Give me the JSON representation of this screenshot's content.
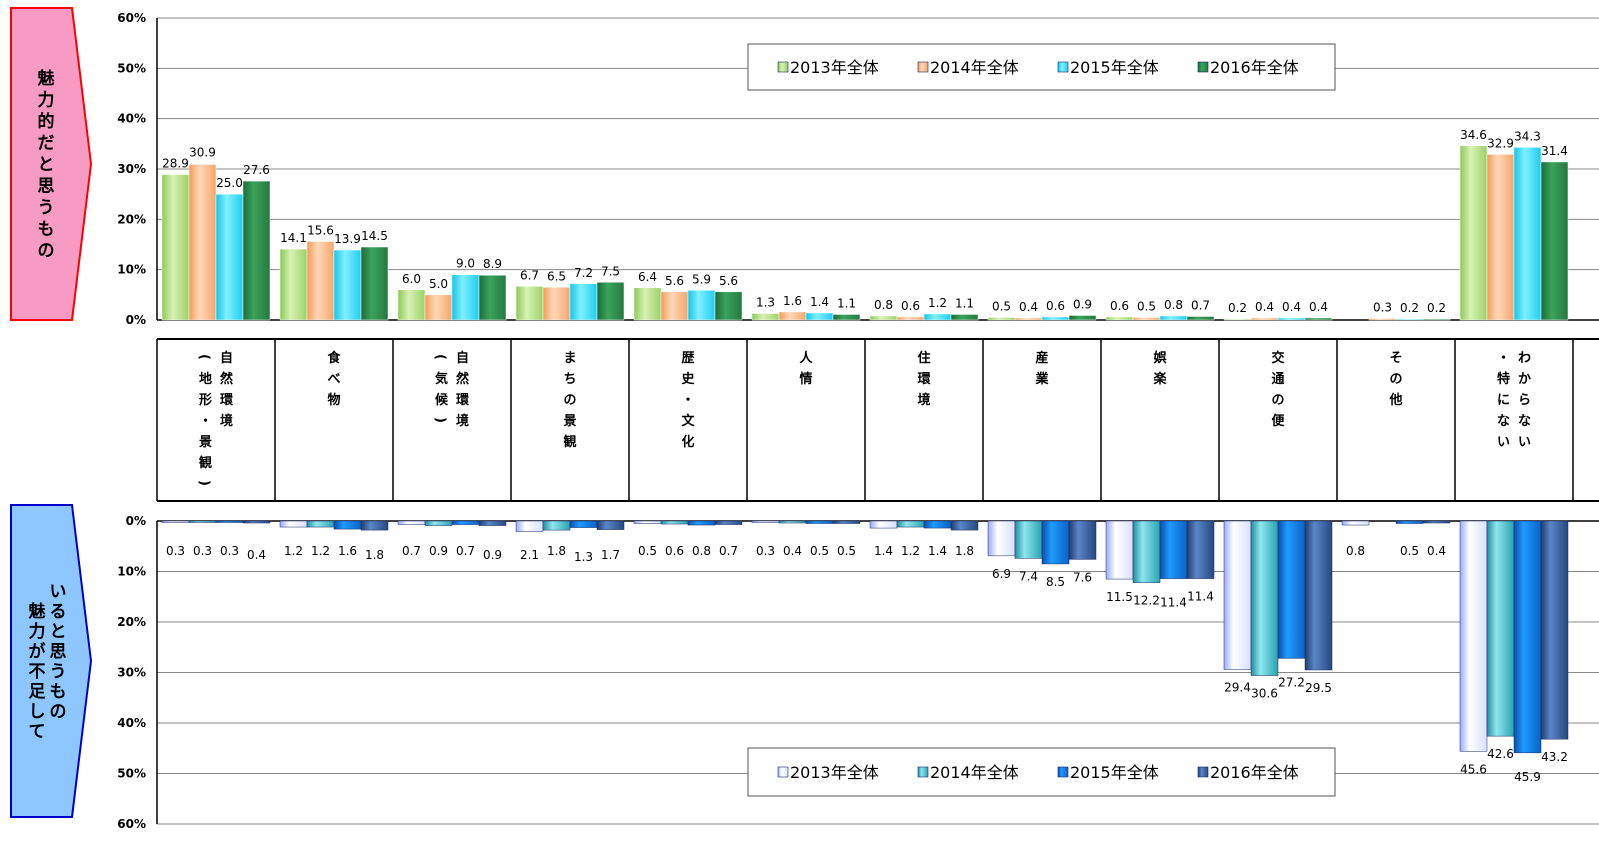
{
  "colors": {
    "top": [
      "#b8e08c",
      "#fbb98a",
      "#33d9f2",
      "#2e8b4a"
    ],
    "bottom": [
      "#e6ecff",
      "#3fb7c3",
      "#1d7fd6",
      "#2f5b9a"
    ],
    "top_label_fill": "#f79ac4",
    "top_label_border": "#ff0000",
    "bottom_label_fill": "#8ec7ff",
    "bottom_label_border": "#0000cc"
  },
  "chart_data": [
    {
      "type": "bar",
      "side_label": "魅力的だと思うもの",
      "categories": [
        "自然環境（地形・景観）",
        "食べ物",
        "自然環境（気候）",
        "まちの景観",
        "歴史・文化",
        "人情",
        "住環境",
        "産業",
        "娯楽",
        "交通の便",
        "その他",
        "わからない・特にない"
      ],
      "category_labels": [
        [
          "（地形・景観）",
          "自然環境"
        ],
        [
          "食べ物"
        ],
        [
          "（気候）",
          "自然環境"
        ],
        [
          "まちの景観"
        ],
        [
          "歴史・文化"
        ],
        [
          "人情"
        ],
        [
          "住環境"
        ],
        [
          "産業"
        ],
        [
          "娯楽"
        ],
        [
          "交通の便"
        ],
        [
          "その他"
        ],
        [
          "・特にない",
          "わからない"
        ]
      ],
      "ylim": [
        0,
        60
      ],
      "y_ticks": [
        "0%",
        "10%",
        "20%",
        "30%",
        "40%",
        "50%",
        "60%"
      ],
      "legend": "top",
      "series": [
        {
          "name": "2013年全体",
          "values": [
            28.9,
            14.1,
            6.0,
            6.7,
            6.4,
            1.3,
            0.8,
            0.5,
            0.6,
            0.2,
            null,
            34.6
          ]
        },
        {
          "name": "2014年全体",
          "values": [
            30.9,
            15.6,
            5.0,
            6.5,
            5.6,
            1.6,
            0.6,
            0.4,
            0.5,
            0.4,
            0.3,
            32.9
          ]
        },
        {
          "name": "2015年全体",
          "values": [
            25.0,
            13.9,
            9.0,
            7.2,
            5.9,
            1.4,
            1.2,
            0.6,
            0.8,
            0.4,
            0.2,
            34.3
          ]
        },
        {
          "name": "2016年全体",
          "values": [
            27.6,
            14.5,
            8.9,
            7.5,
            5.6,
            1.1,
            1.1,
            0.9,
            0.7,
            0.4,
            0.2,
            31.4
          ]
        }
      ]
    },
    {
      "type": "bar",
      "side_label": "魅力が不足していると思うもの",
      "categories": [
        "自然環境（地形・景観）",
        "食べ物",
        "自然環境（気候）",
        "まちの景観",
        "歴史・文化",
        "人情",
        "住環境",
        "産業",
        "娯楽",
        "交通の便",
        "その他",
        "わからない・特にない"
      ],
      "ylim": [
        0,
        60
      ],
      "y_ticks": [
        "0%",
        "10%",
        "20%",
        "30%",
        "40%",
        "50%",
        "60%"
      ],
      "legend": "bottom",
      "series": [
        {
          "name": "2013年全体",
          "values": [
            0.3,
            1.2,
            0.7,
            2.1,
            0.5,
            0.3,
            1.4,
            6.9,
            11.5,
            29.4,
            0.8,
            45.6
          ]
        },
        {
          "name": "2014年全体",
          "values": [
            0.3,
            1.2,
            0.9,
            1.8,
            0.6,
            0.4,
            1.2,
            7.4,
            12.2,
            30.6,
            null,
            42.6
          ]
        },
        {
          "name": "2015年全体",
          "values": [
            0.3,
            1.6,
            0.7,
            1.3,
            0.8,
            0.5,
            1.4,
            8.5,
            11.4,
            27.2,
            0.5,
            45.9
          ]
        },
        {
          "name": "2016年全体",
          "values": [
            0.4,
            1.8,
            0.9,
            1.7,
            0.7,
            0.5,
            1.8,
            7.6,
            11.4,
            29.5,
            0.4,
            43.2
          ]
        }
      ]
    }
  ]
}
